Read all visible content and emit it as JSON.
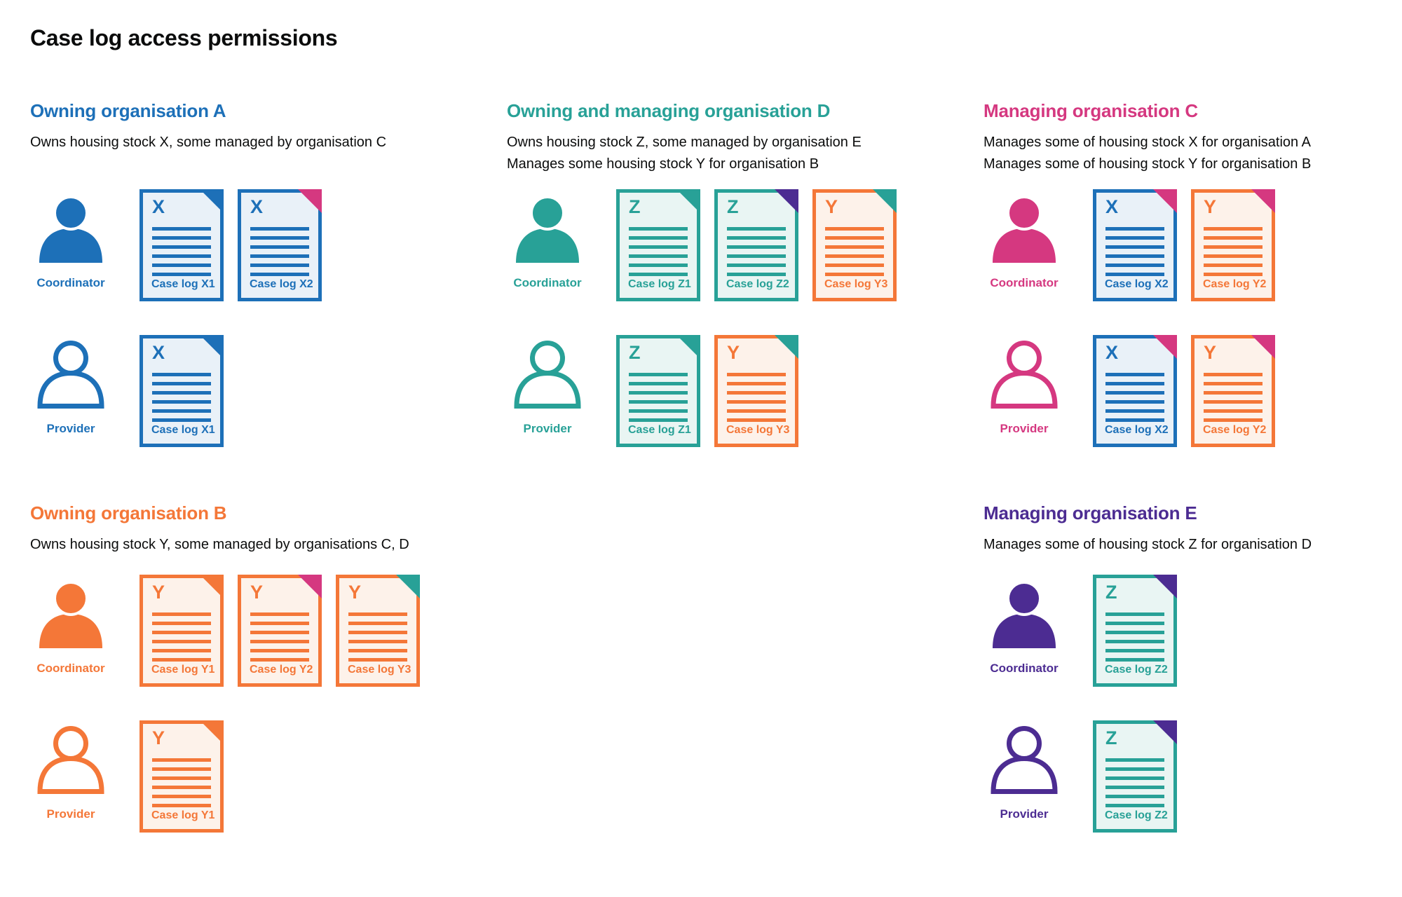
{
  "page": {
    "title": "Case log access permissions"
  },
  "colors": {
    "text": "#0b0c0c",
    "blue": "#1d70b8",
    "teal": "#28a197",
    "pink": "#d53880",
    "orange": "#f47738",
    "purple": "#4c2c92"
  },
  "doc_fills": {
    "blue": "#e9f1f8",
    "teal": "#e9f5f3",
    "orange": "#fdf2ea"
  },
  "sections": [
    {
      "id": "org-a",
      "band": "upper",
      "theme": "blue",
      "title": "Owning organisation A",
      "description": [
        "Owns housing stock X, some managed by organisation C"
      ],
      "rows": [
        {
          "role": "Coordinator",
          "person": "filled",
          "docs": [
            {
              "letter": "X",
              "label": "Case log X1",
              "body": "blue",
              "fold": "blue"
            },
            {
              "letter": "X",
              "label": "Case log X2",
              "body": "blue",
              "fold": "pink"
            }
          ]
        },
        {
          "role": "Provider",
          "person": "outline",
          "docs": [
            {
              "letter": "X",
              "label": "Case log X1",
              "body": "blue",
              "fold": "blue"
            }
          ]
        }
      ]
    },
    {
      "id": "org-d",
      "band": "upper",
      "theme": "teal",
      "title": "Owning and managing organisation D",
      "description": [
        "Owns housing stock Z, some managed by organisation E",
        "Manages some housing stock Y for organisation B"
      ],
      "rows": [
        {
          "role": "Coordinator",
          "person": "filled",
          "docs": [
            {
              "letter": "Z",
              "label": "Case log Z1",
              "body": "teal",
              "fold": "teal"
            },
            {
              "letter": "Z",
              "label": "Case log Z2",
              "body": "teal",
              "fold": "purple"
            },
            {
              "letter": "Y",
              "label": "Case log Y3",
              "body": "orange",
              "fold": "teal"
            }
          ]
        },
        {
          "role": "Provider",
          "person": "outline",
          "docs": [
            {
              "letter": "Z",
              "label": "Case log Z1",
              "body": "teal",
              "fold": "teal"
            },
            {
              "letter": "Y",
              "label": "Case log Y3",
              "body": "orange",
              "fold": "teal"
            }
          ]
        }
      ]
    },
    {
      "id": "org-c",
      "band": "upper",
      "theme": "pink",
      "title": "Managing organisation C",
      "description": [
        "Manages some of housing stock X for organisation A",
        "Manages some of housing stock Y for organisation B"
      ],
      "rows": [
        {
          "role": "Coordinator",
          "person": "filled",
          "docs": [
            {
              "letter": "X",
              "label": "Case log X2",
              "body": "blue",
              "fold": "pink"
            },
            {
              "letter": "Y",
              "label": "Case log Y2",
              "body": "orange",
              "fold": "pink"
            }
          ]
        },
        {
          "role": "Provider",
          "person": "outline",
          "docs": [
            {
              "letter": "X",
              "label": "Case log X2",
              "body": "blue",
              "fold": "pink"
            },
            {
              "letter": "Y",
              "label": "Case log Y2",
              "body": "orange",
              "fold": "pink"
            }
          ]
        }
      ]
    },
    {
      "id": "org-b",
      "band": "lower",
      "theme": "orange",
      "title": "Owning organisation B",
      "description": [
        "Owns housing stock Y, some managed by organisations C, D"
      ],
      "rows": [
        {
          "role": "Coordinator",
          "person": "filled",
          "docs": [
            {
              "letter": "Y",
              "label": "Case log Y1",
              "body": "orange",
              "fold": "orange"
            },
            {
              "letter": "Y",
              "label": "Case log Y2",
              "body": "orange",
              "fold": "pink"
            },
            {
              "letter": "Y",
              "label": "Case log Y3",
              "body": "orange",
              "fold": "teal"
            }
          ]
        },
        {
          "role": "Provider",
          "person": "outline",
          "docs": [
            {
              "letter": "Y",
              "label": "Case log Y1",
              "body": "orange",
              "fold": "orange"
            }
          ]
        }
      ]
    },
    {
      "id": "org-e",
      "band": "lower",
      "theme": "purple",
      "title": "Managing organisation E",
      "description": [
        "Manages some of housing stock Z for organisation D"
      ],
      "rows": [
        {
          "role": "Coordinator",
          "person": "filled",
          "docs": [
            {
              "letter": "Z",
              "label": "Case log Z2",
              "body": "teal",
              "fold": "purple"
            }
          ]
        },
        {
          "role": "Provider",
          "person": "outline",
          "docs": [
            {
              "letter": "Z",
              "label": "Case log Z2",
              "body": "teal",
              "fold": "purple"
            }
          ]
        }
      ]
    }
  ]
}
